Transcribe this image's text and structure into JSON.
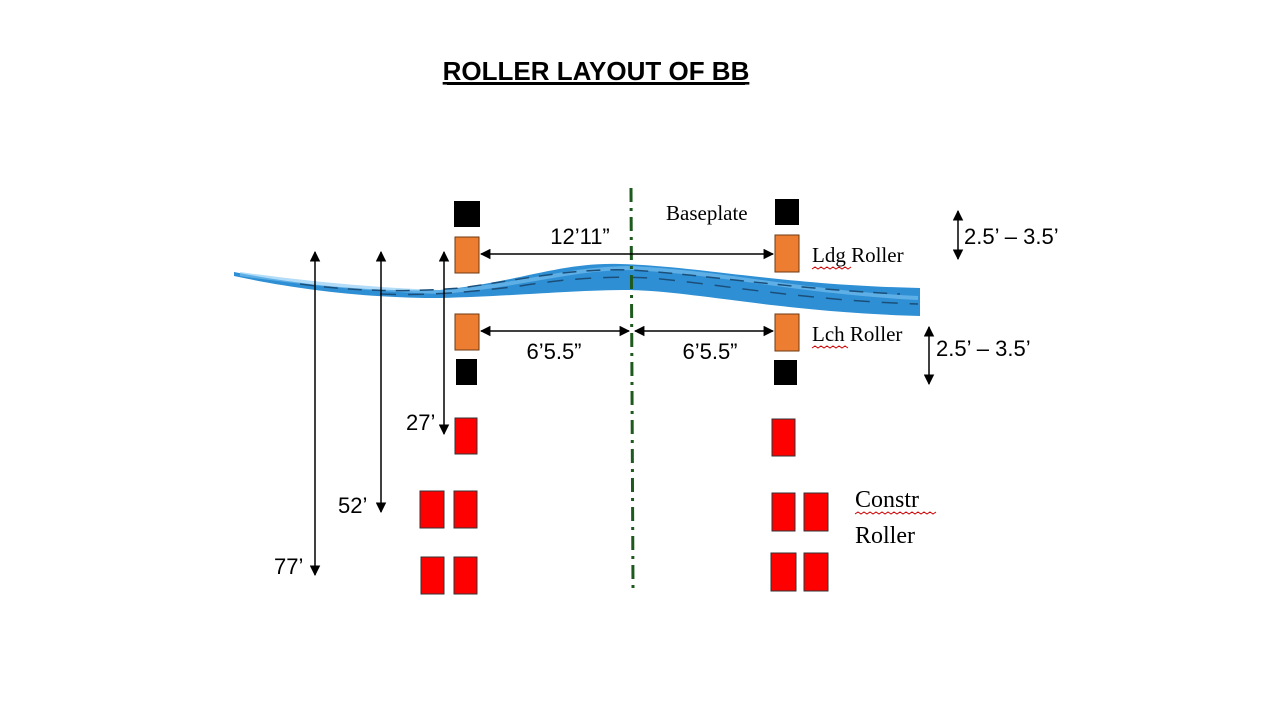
{
  "title": "ROLLER LAYOUT OF BB",
  "labels": {
    "baseplate": "Baseplate",
    "ldg_roller": "Ldg Roller",
    "lch_roller": "Lch Roller",
    "constr_line1": "Constr",
    "constr_line2": "Roller"
  },
  "dimensions": {
    "span": "12’11”",
    "half_left": "6’5.5”",
    "half_right": "6’5.5”",
    "gap_top": "2.5’ – 3.5’",
    "gap_bottom": "2.5’ – 3.5’",
    "d27": "27’",
    "d52": "52’",
    "d77": "77’"
  },
  "colors": {
    "baseplate": "#000000",
    "roller_orange": "#ed7d31",
    "constr_red": "#ff0000",
    "beam_blue": "#2e8fd4",
    "centerline": "#1e5a1e"
  }
}
